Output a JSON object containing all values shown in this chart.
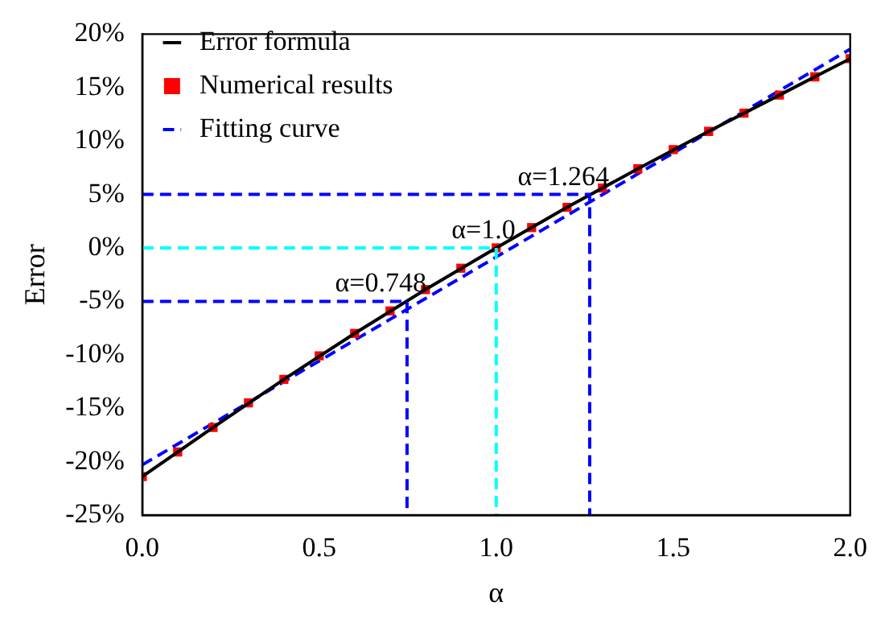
{
  "chart_data": {
    "type": "line",
    "xlabel": "α",
    "ylabel": "Error",
    "xlim": [
      0,
      2
    ],
    "xticks": [
      {
        "value": 0,
        "label": "0.0"
      },
      {
        "value": 0.5,
        "label": "0.5"
      },
      {
        "value": 1,
        "label": "1.0"
      },
      {
        "value": 1.5,
        "label": "1.5"
      },
      {
        "value": 2,
        "label": "2.0"
      }
    ],
    "ylim": [
      -25,
      20
    ],
    "yticks": [
      {
        "value": -25,
        "label": "-25%"
      },
      {
        "value": -20,
        "label": "-20%"
      },
      {
        "value": -15,
        "label": "-15%"
      },
      {
        "value": -10,
        "label": "-10%"
      },
      {
        "value": -5,
        "label": "-5%"
      },
      {
        "value": 0,
        "label": "0%"
      },
      {
        "value": 5,
        "label": "5%"
      },
      {
        "value": 10,
        "label": "10%"
      },
      {
        "value": 15,
        "label": "15%"
      },
      {
        "value": 20,
        "label": "20%"
      }
    ],
    "grid": false,
    "legend": "top left",
    "series": [
      {
        "type": "line",
        "x": [
          0,
          1.264,
          1.264
        ],
        "values": [
          5,
          5,
          -25
        ],
        "color": "#0000ff",
        "line_style": "dashed"
      },
      {
        "type": "line",
        "x": [
          0,
          1.0,
          1.0
        ],
        "values": [
          0,
          0,
          -25
        ],
        "color": "#00ffff",
        "line_style": "dashed"
      },
      {
        "type": "line",
        "x": [
          0,
          0.748,
          0.748
        ],
        "values": [
          -5,
          -5,
          -25
        ],
        "color": "#0000ff",
        "line_style": "dashed"
      },
      {
        "name": "Error formula",
        "type": "line",
        "x": [
          0,
          0.2,
          0.4,
          0.6,
          0.8,
          1.0,
          1.2,
          1.4,
          1.6,
          1.8,
          2.0
        ],
        "values": [
          -21.4,
          -16.8,
          -12.3,
          -8.0,
          -3.9,
          0,
          3.8,
          7.4,
          10.9,
          14.3,
          17.7
        ],
        "color": "#000000",
        "line_style": "solid",
        "marker": "none"
      },
      {
        "name": "Numerical results",
        "type": "scatter",
        "x": [
          0,
          0.1,
          0.2,
          0.3,
          0.4,
          0.5,
          0.6,
          0.7,
          0.8,
          0.9,
          1.0,
          1.1,
          1.2,
          1.3,
          1.4,
          1.5,
          1.6,
          1.7,
          1.8,
          1.9,
          2.0
        ],
        "values": [
          -21.4,
          -19.1,
          -16.8,
          -14.5,
          -12.3,
          -10.1,
          -8.0,
          -5.9,
          -3.9,
          -1.9,
          0,
          1.9,
          3.8,
          5.6,
          7.4,
          9.2,
          10.9,
          12.6,
          14.3,
          16.0,
          17.7
        ],
        "color": "#ff0000",
        "marker": "square"
      },
      {
        "name": "Fitting curve",
        "type": "line",
        "x": [
          0,
          2
        ],
        "values": [
          -20.3,
          18.6
        ],
        "color": "#0000ff",
        "line_style": "dashed",
        "marker": "none"
      }
    ],
    "annotations": [
      {
        "text": "α=1.264",
        "x": 1.264,
        "y": 5
      },
      {
        "text": "α=1.0",
        "x": 1.0,
        "y": 0
      },
      {
        "text": "α=0.748",
        "x": 0.748,
        "y": -5
      }
    ]
  }
}
